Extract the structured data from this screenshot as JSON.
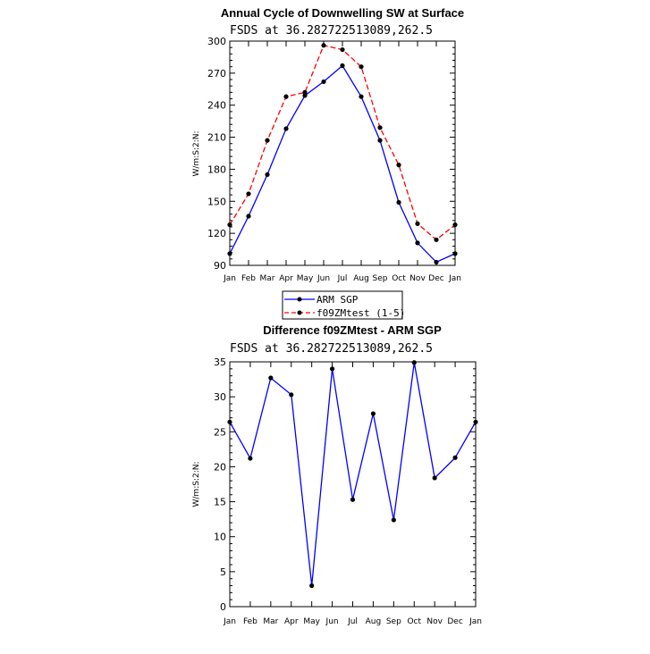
{
  "chart_data": [
    {
      "type": "line",
      "title": "Annual Cycle of Downwelling SW at Surface",
      "subtitle": "FSDS at 36.282722513089,262.5",
      "ylabel": "W/m:S:2:N:",
      "xlabel": "",
      "categories": [
        "Jan",
        "Feb",
        "Mar",
        "Apr",
        "May",
        "Jun",
        "Jul",
        "Aug",
        "Sep",
        "Oct",
        "Nov",
        "Dec",
        "Jan"
      ],
      "ylim": [
        90,
        300
      ],
      "yticks": [
        90,
        120,
        150,
        180,
        210,
        240,
        270,
        300
      ],
      "grid": false,
      "series": [
        {
          "name": "ARM SGP",
          "color": "#0000ff",
          "dash": "solid",
          "values": [
            101,
            136,
            175,
            218,
            249,
            262,
            277,
            248,
            207,
            149,
            111,
            93,
            101
          ]
        },
        {
          "name": "f09ZMtest (1-5)",
          "color": "#ff0000",
          "dash": "dashed",
          "values": [
            128,
            157,
            207,
            248,
            252,
            296,
            292,
            276,
            219,
            184,
            129,
            114,
            128
          ]
        }
      ],
      "legend": {
        "position": "bottom-center",
        "entries": [
          "ARM SGP",
          "f09ZMtest (1-5)"
        ]
      }
    },
    {
      "type": "line",
      "title": "Difference f09ZMtest - ARM SGP",
      "subtitle": "FSDS at 36.282722513089,262.5",
      "ylabel": "W/m:S:2:N:",
      "xlabel": "",
      "categories": [
        "Jan",
        "Feb",
        "Mar",
        "Apr",
        "May",
        "Jun",
        "Jul",
        "Aug",
        "Sep",
        "Oct",
        "Nov",
        "Dec",
        "Jan"
      ],
      "ylim": [
        0,
        35
      ],
      "yticks": [
        0,
        5,
        10,
        15,
        20,
        25,
        30,
        35
      ],
      "grid": false,
      "series": [
        {
          "color": "#0000ff",
          "dash": "solid",
          "values": [
            26.4,
            21.2,
            32.7,
            30.3,
            3.0,
            34.0,
            15.3,
            27.6,
            12.4,
            34.9,
            18.4,
            21.3,
            26.4
          ]
        }
      ]
    }
  ]
}
